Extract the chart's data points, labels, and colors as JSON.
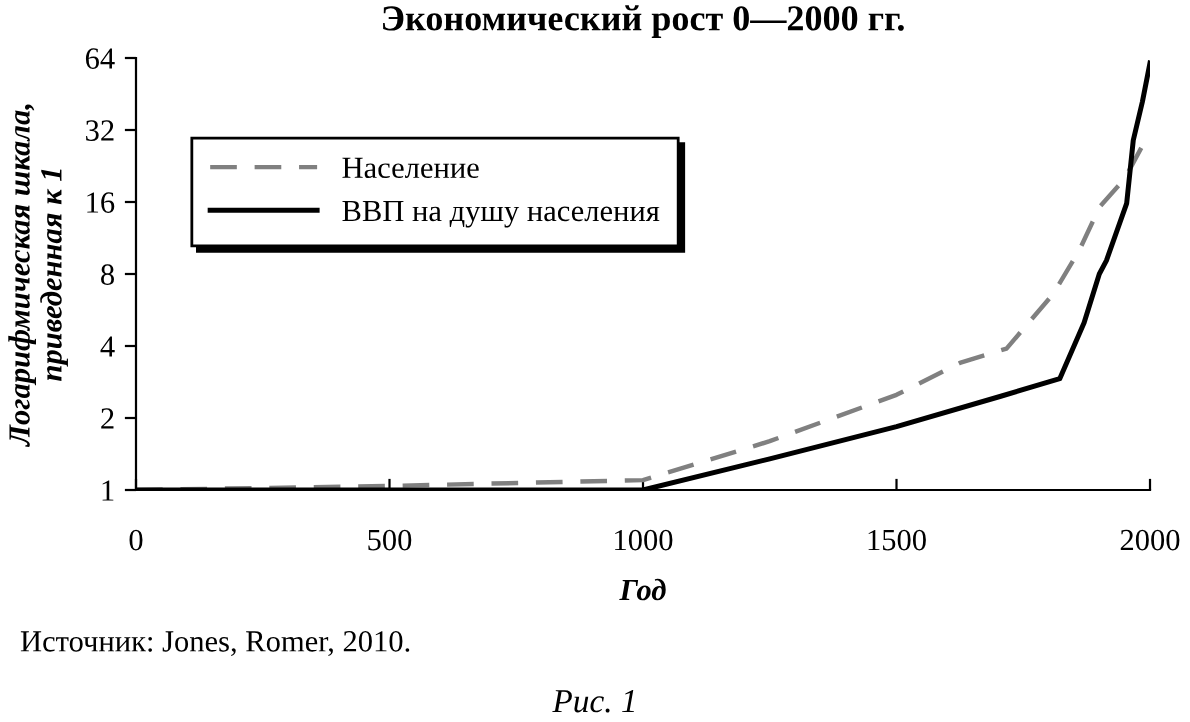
{
  "chart_data": {
    "type": "line",
    "title": "Экономический рост 0—2000 гг.",
    "xlabel": "Год",
    "ylabel": "Логарифмическая шкала,\nприведенная к 1",
    "annotations": [
      "Источник: Jones, Romer, 2010.",
      "Рис. 1"
    ],
    "log": "y",
    "xlim": [
      0,
      2000
    ],
    "xticks": [
      0,
      500,
      1000,
      1500,
      2000
    ],
    "ylim": [
      1,
      64
    ],
    "yticks": [
      1,
      2,
      4,
      8,
      16,
      32,
      64
    ],
    "grid": false,
    "legend": "top left",
    "marker": "none",
    "series": [
      {
        "name": "Население",
        "color": "#808080",
        "line_style": "dashed",
        "x": [
          0,
          500,
          1000,
          1250,
          1500,
          1625,
          1717,
          1809,
          1860,
          1901,
          1950,
          1987,
          2000
        ],
        "values": [
          1,
          1.04,
          1.1,
          1.6,
          2.5,
          3.4,
          3.9,
          6.6,
          10,
          15.3,
          20,
          28,
          30
        ]
      },
      {
        "name": "ВВП на душу населения",
        "color": "#000000",
        "line_style": "solid",
        "x": [
          0,
          1000,
          1250,
          1500,
          1704,
          1822,
          1870,
          1900,
          1914,
          1954,
          1967,
          1985,
          2000
        ],
        "values": [
          1,
          1,
          1.35,
          1.84,
          2.46,
          2.92,
          5,
          8,
          9.1,
          15.8,
          29,
          42,
          61
        ]
      }
    ]
  }
}
